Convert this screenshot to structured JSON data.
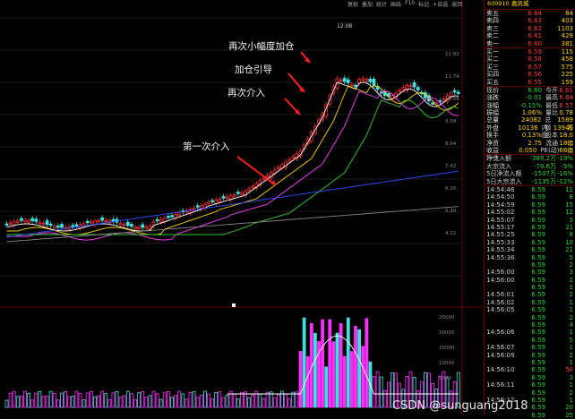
{
  "toolbar": {
    "items": [
      "复权",
      "叠加",
      "统计",
      "画线",
      "F10",
      "标记",
      "+自选",
      "返回"
    ]
  },
  "stock": {
    "code": "600910",
    "name": "嘉凯城"
  },
  "annotations": [
    {
      "text": "再次小幅度加仓"
    },
    {
      "text": "加仓引导"
    },
    {
      "text": "再次介入"
    },
    {
      "text": "第一次介入"
    }
  ],
  "peak_label": "12.08",
  "axis_labels": {
    "price": [
      "12.82",
      "11.74",
      "10.68",
      "9.58",
      "8.54",
      "7.42",
      "6.35",
      "5.30",
      "4.22"
    ],
    "volume": [
      "25000",
      "20000",
      "15000",
      "10000",
      "5000"
    ]
  },
  "order_book": {
    "sell": [
      {
        "label": "卖五",
        "price": "6.64",
        "vol": "84"
      },
      {
        "label": "卖四",
        "price": "6.63",
        "vol": "403"
      },
      {
        "label": "卖三",
        "price": "6.62",
        "vol": "1103"
      },
      {
        "label": "卖二",
        "price": "6.61",
        "vol": "429"
      },
      {
        "label": "卖一",
        "price": "6.60",
        "vol": "381"
      }
    ],
    "buy": [
      {
        "label": "买一",
        "price": "6.59",
        "vol": "115"
      },
      {
        "label": "买二",
        "price": "6.58",
        "vol": "458"
      },
      {
        "label": "买三",
        "price": "6.57",
        "vol": "575"
      },
      {
        "label": "买四",
        "price": "6.56",
        "vol": "225"
      },
      {
        "label": "买五",
        "price": "6.55",
        "vol": "159"
      }
    ]
  },
  "stats": [
    {
      "l1": "现价",
      "v1": "6.60",
      "l2": "今开",
      "v2": "6.61"
    },
    {
      "l1": "涨跌",
      "v1": "-0.01",
      "l2": "最高",
      "v2": "6.64"
    },
    {
      "l1": "涨幅",
      "v1": "-0.15%",
      "l2": "最低",
      "v2": "6.57"
    },
    {
      "l1": "振幅",
      "v1": "1.06%",
      "l2": "量比",
      "v2": "0.78"
    },
    {
      "l1": "总量",
      "v1": "24082",
      "l2": "总额",
      "v2": "1589万"
    },
    {
      "l1": "外盘",
      "v1": "10136",
      "l2": "内盘",
      "v2": "13946"
    },
    {
      "l1": "换手",
      "v1": "0.13%",
      "l2": "股本",
      "v2": "18.0亿"
    },
    {
      "l1": "净资",
      "v1": "2.75",
      "l2": "流通",
      "v2": "18.0亿"
    },
    {
      "l1": "收益(一)",
      "v1": "0.050",
      "l2": "PE(动)",
      "v2": "66.0"
    }
  ],
  "fund_flow": [
    {
      "label": "净流入额",
      "v": "-388.2万",
      "p": "-19%"
    },
    {
      "label": "大宗流入",
      "v": "-79.6万",
      "p": "-5%"
    },
    {
      "label": "5日净流入额",
      "v": "-1507万",
      "p": "-16%"
    },
    {
      "label": "5日大宗流入",
      "v": "-1135万",
      "p": "-12%"
    }
  ],
  "ticks": [
    {
      "t": "14:54:46",
      "p": "6.59",
      "v": "11",
      "d": "s"
    },
    {
      "t": "14:54:50",
      "p": "6.59",
      "v": "8",
      "d": "s"
    },
    {
      "t": "14:54:59",
      "p": "6.59",
      "v": "15",
      "d": "s"
    },
    {
      "t": "14:55:02",
      "p": "6.59",
      "v": "12",
      "d": "s"
    },
    {
      "t": "14:55:07",
      "p": "6.59",
      "v": "3",
      "d": "s"
    },
    {
      "t": "14:55:17",
      "p": "6.59",
      "v": "21",
      "d": "s"
    },
    {
      "t": "14:55:25",
      "p": "6.59",
      "v": "8",
      "d": "s"
    },
    {
      "t": "14:55:33",
      "p": "6.59",
      "v": "10",
      "d": "s"
    },
    {
      "t": "14:55:34",
      "p": "6.59",
      "v": "21",
      "d": "s"
    },
    {
      "t": "14:55:36",
      "p": "6.59",
      "v": "5",
      "d": "s"
    },
    {
      "t": "",
      "p": "6.59",
      "v": "2",
      "d": "s"
    },
    {
      "t": "14:56:00",
      "p": "6.59",
      "v": "3",
      "d": "s"
    },
    {
      "t": "14:56:00",
      "p": "6.59",
      "v": "2",
      "d": "s"
    },
    {
      "t": "",
      "p": "6.59",
      "v": "1",
      "d": "s"
    },
    {
      "t": "14:56:01",
      "p": "6.59",
      "v": "2",
      "d": "s"
    },
    {
      "t": "14:56:02",
      "p": "6.59",
      "v": "1",
      "d": "s"
    },
    {
      "t": "14:56:05",
      "p": "6.59",
      "v": "1",
      "d": "s"
    },
    {
      "t": "",
      "p": "6.59",
      "v": "2",
      "d": "s"
    },
    {
      "t": "",
      "p": "6.59",
      "v": "4",
      "d": "s"
    },
    {
      "t": "14:56:06",
      "p": "6.59",
      "v": "1",
      "d": "s"
    },
    {
      "t": "",
      "p": "6.59",
      "v": "5",
      "d": "s"
    },
    {
      "t": "14:56:07",
      "p": "6.59",
      "v": "1",
      "d": "s"
    },
    {
      "t": "14:56:09",
      "p": "6.59",
      "v": "2",
      "d": "s"
    },
    {
      "t": "",
      "p": "6.59",
      "v": "1",
      "d": "s"
    },
    {
      "t": "14:56:10",
      "p": "6.59",
      "v": "50",
      "d": "b"
    },
    {
      "t": "",
      "p": "6.59",
      "v": "3",
      "d": "s"
    },
    {
      "t": "14:56:11",
      "p": "6.59",
      "v": "1",
      "d": "s"
    },
    {
      "t": "",
      "p": "6.59",
      "v": "2",
      "d": "s"
    },
    {
      "t": "14:56:12",
      "p": "6.59",
      "v": "1",
      "d": "s"
    },
    {
      "t": "",
      "p": "6.59",
      "v": "20",
      "d": "s"
    },
    {
      "t": "",
      "p": "6.59",
      "v": "25",
      "d": "s"
    }
  ],
  "watermark": "CSDN @sunguang2018",
  "colors": {
    "up": "#ff3030",
    "down": "#40e0e0",
    "ma5": "#ffffff",
    "ma10": "#ffd400",
    "ma20": "#ff40ff",
    "ma30": "#30d030",
    "ma60": "#3050ff"
  }
}
